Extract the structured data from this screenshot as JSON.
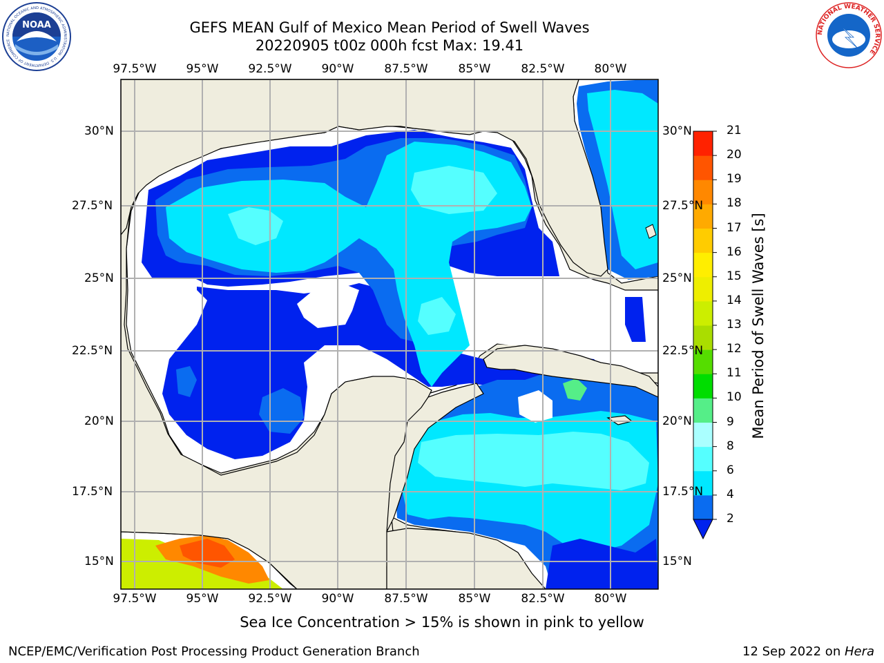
{
  "title": {
    "line1": "GEFS MEAN Gulf of Mexico Mean Period of Swell Waves",
    "line2": "20220905 t00z 000h fcst   Max: 19.41"
  },
  "map": {
    "longitude_ticks": [
      "97.5°W",
      "95°W",
      "92.5°W",
      "90°W",
      "87.5°W",
      "85°W",
      "82.5°W",
      "80°W"
    ],
    "latitude_ticks_left": [
      "30°N",
      "27.5°N",
      "25°N",
      "22.5°N",
      "20°N",
      "17.5°N",
      "15°N"
    ],
    "latitude_ticks_right": [
      "30°N",
      "27.5°N",
      "25°N",
      "22.5°N",
      "20°N",
      "17.5°N",
      "15°N"
    ],
    "lon_range": [
      -98,
      -78
    ],
    "lat_range": [
      14,
      32
    ],
    "grid": true,
    "land_color": "#efedde",
    "ocean_missing_color": "#ffffff"
  },
  "colorbar": {
    "title": "Mean Period of Swell Waves [s]",
    "ticks": [
      "2",
      "4",
      "6",
      "8",
      "9",
      "10",
      "11",
      "12",
      "13",
      "14",
      "15",
      "16",
      "17",
      "18",
      "19",
      "20",
      "21"
    ],
    "colors": [
      "#0a6cf0",
      "#00e8ff",
      "#55ffff",
      "#aaffff",
      "#55ee88",
      "#00dd00",
      "#55dd00",
      "#aadd00",
      "#ccee00",
      "#eeee00",
      "#ffee00",
      "#ffcc00",
      "#ffaa00",
      "#ff8800",
      "#ff5500",
      "#ff2200"
    ],
    "extend_low_color": "#0022ee"
  },
  "footer": {
    "note": "Sea Ice Concentration > 15% is shown in pink to yellow",
    "left": "NCEP/EMC/Verification Post Processing Product Generation Branch",
    "right_date": "12 Sep 2022 on ",
    "right_host": "Hera"
  },
  "logos": {
    "left": "NOAA",
    "left_ring": "NATIONAL OCEANIC AND ATMOSPHERIC ADMINISTRATION · U.S. DEPARTMENT OF COMMERCE",
    "right_ring": "NATIONAL WEATHER SERVICE"
  }
}
